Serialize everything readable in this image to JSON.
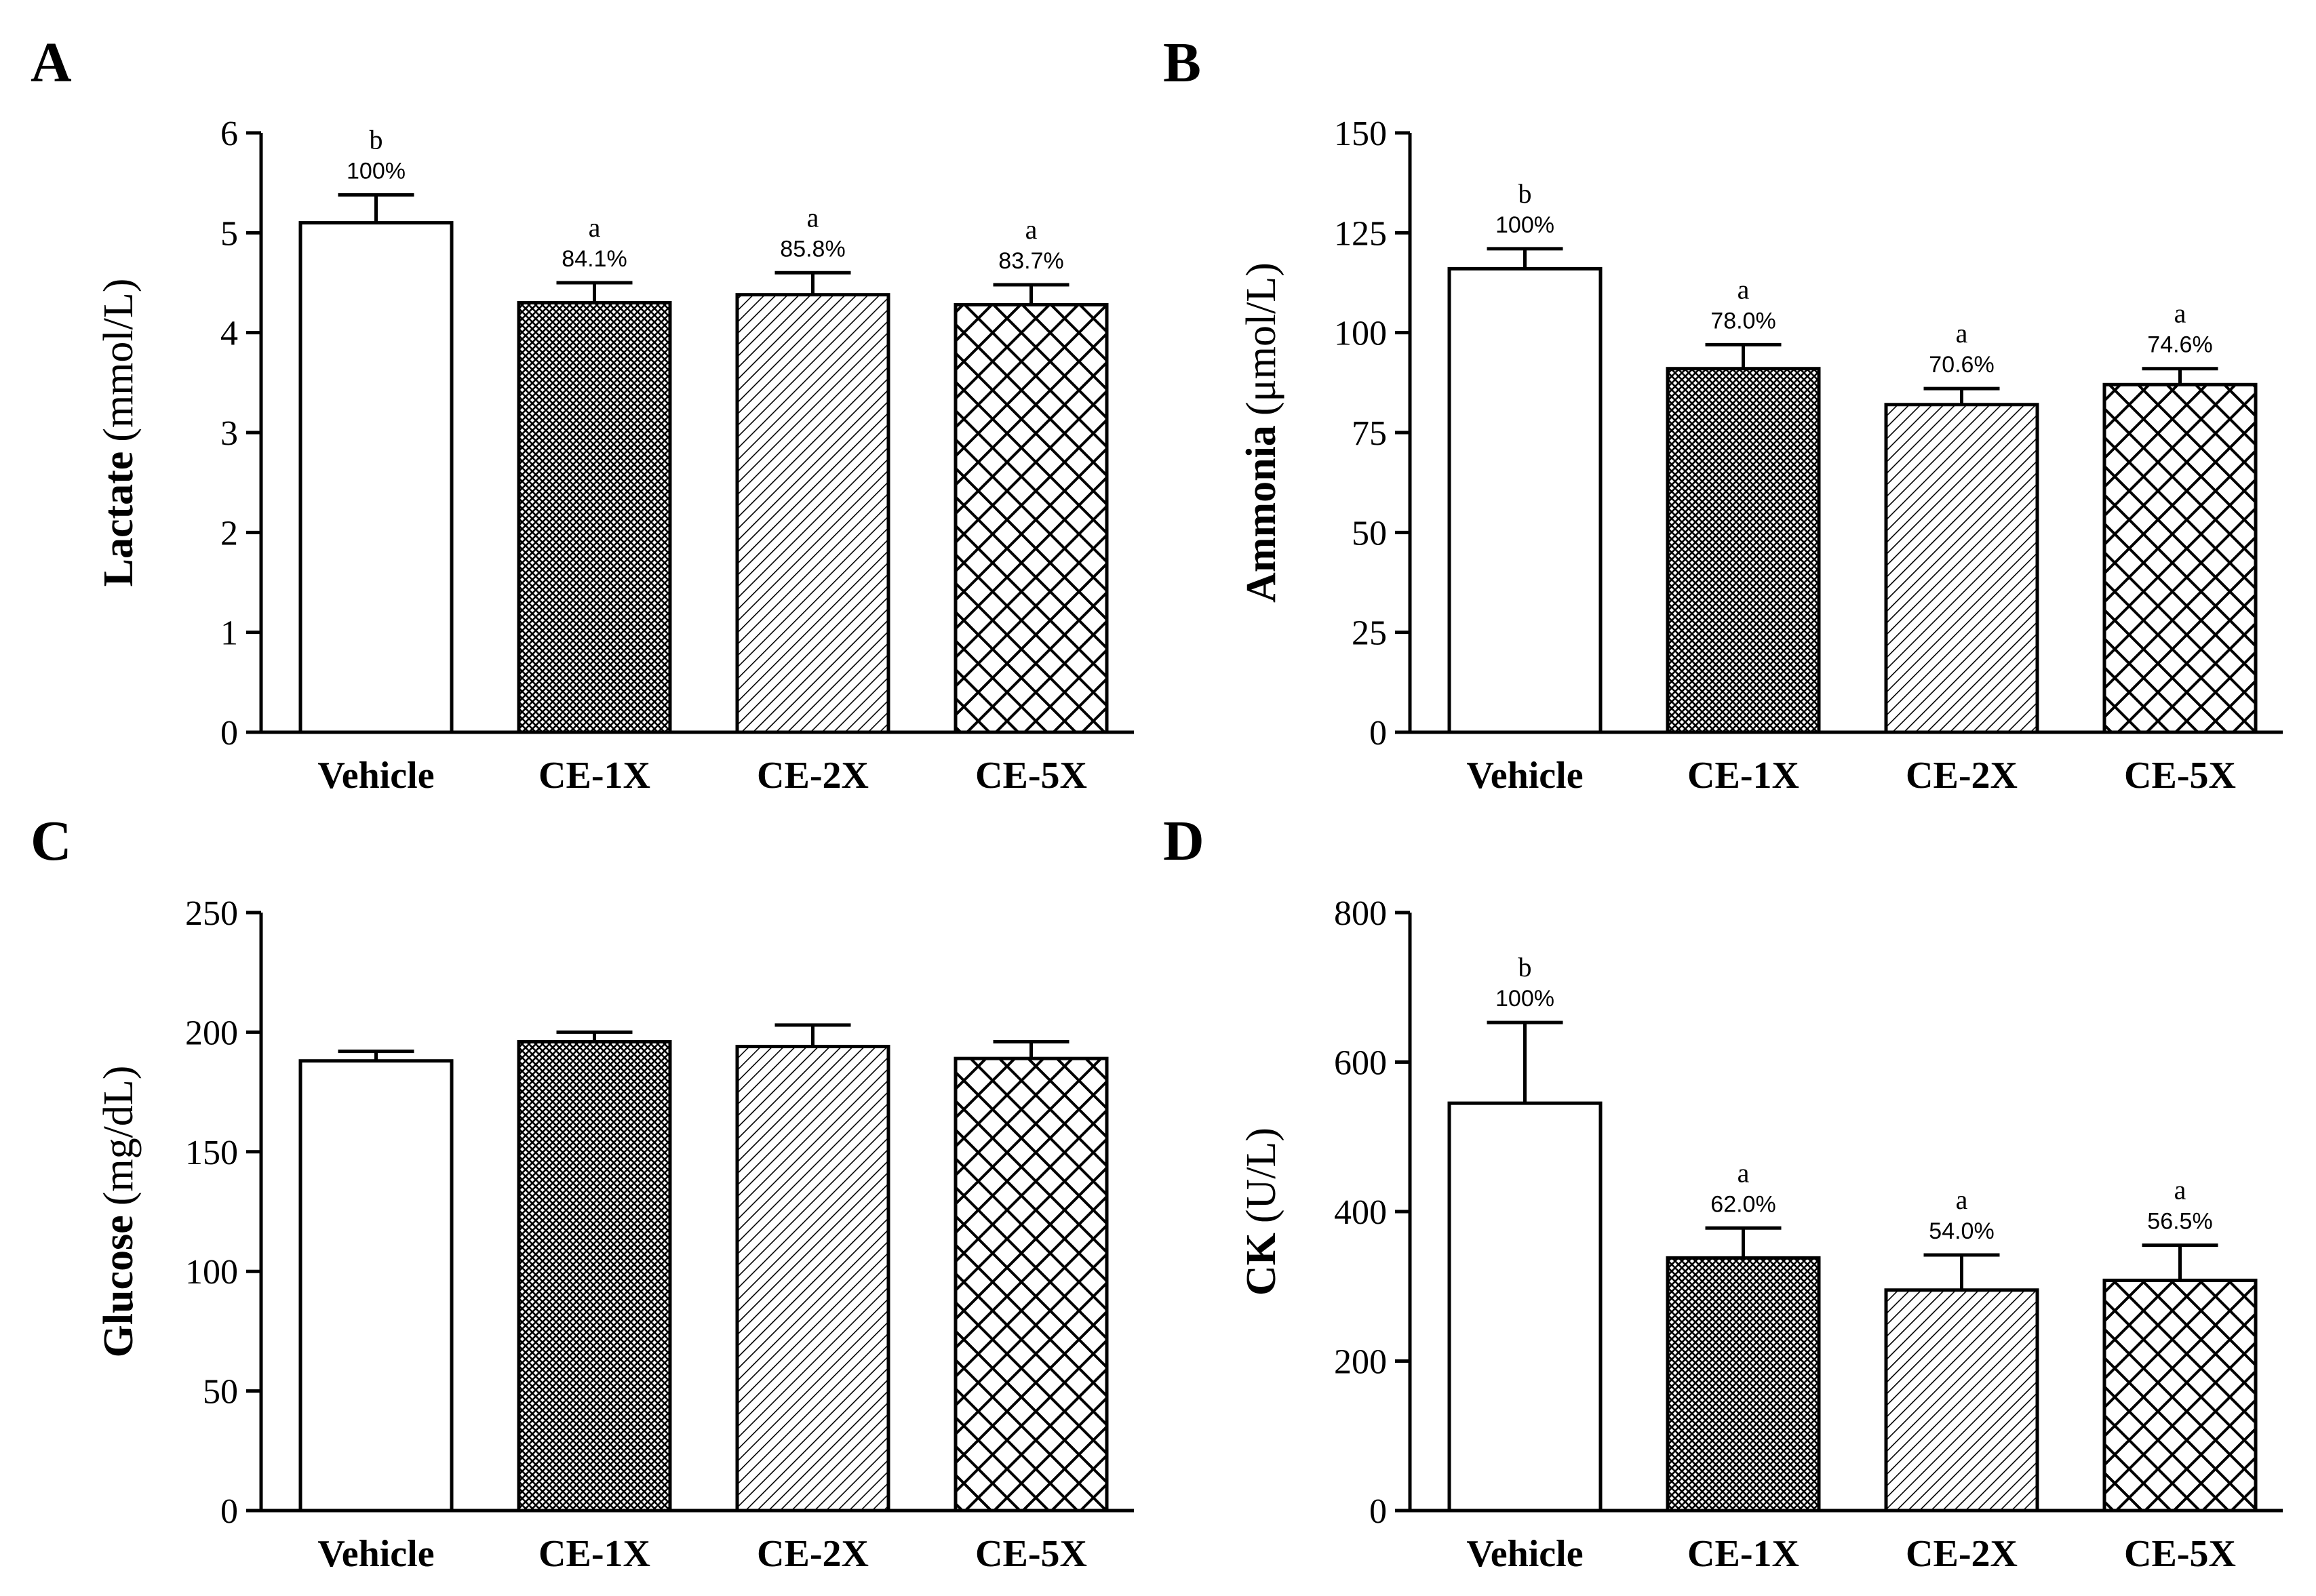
{
  "figure": {
    "title": ""
  },
  "colors": {
    "ink": "#000000",
    "paper": "#ffffff"
  },
  "chart_data": [
    {
      "panel": "A",
      "type": "bar",
      "title": "",
      "xlabel": "",
      "ylabel_bold": "Lactate",
      "ylabel_unit": "(mmol/L)",
      "ylim": [
        0,
        6
      ],
      "yticks": [
        0,
        1,
        2,
        3,
        4,
        5,
        6
      ],
      "categories": [
        "Vehicle",
        "CE-1X",
        "CE-2X",
        "CE-5X"
      ],
      "fill_patterns": [
        "none",
        "dots",
        "diagonal",
        "crosshatch"
      ],
      "values": [
        5.1,
        4.3,
        4.38,
        4.28
      ],
      "errors": [
        0.28,
        0.2,
        0.22,
        0.2
      ],
      "significance": [
        "b",
        "a",
        "a",
        "a"
      ],
      "percent_labels": [
        "100%",
        "84.1%",
        "85.8%",
        "83.7%"
      ]
    },
    {
      "panel": "B",
      "type": "bar",
      "title": "",
      "xlabel": "",
      "ylabel_bold": "Ammonia",
      "ylabel_unit": "(μmol/L)",
      "ylim": [
        0,
        150
      ],
      "yticks": [
        0,
        25,
        50,
        75,
        100,
        125,
        150
      ],
      "categories": [
        "Vehicle",
        "CE-1X",
        "CE-2X",
        "CE-5X"
      ],
      "fill_patterns": [
        "none",
        "dots",
        "diagonal",
        "crosshatch"
      ],
      "values": [
        116,
        91,
        82,
        87
      ],
      "errors": [
        5,
        6,
        4,
        4
      ],
      "significance": [
        "b",
        "a",
        "a",
        "a"
      ],
      "percent_labels": [
        "100%",
        "78.0%",
        "70.6%",
        "74.6%"
      ]
    },
    {
      "panel": "C",
      "type": "bar",
      "title": "",
      "xlabel": "",
      "ylabel_bold": "Glucose",
      "ylabel_unit": "(mg/dL)",
      "ylim": [
        0,
        250
      ],
      "yticks": [
        0,
        50,
        100,
        150,
        200,
        250
      ],
      "categories": [
        "Vehicle",
        "CE-1X",
        "CE-2X",
        "CE-5X"
      ],
      "fill_patterns": [
        "none",
        "dots",
        "diagonal",
        "crosshatch"
      ],
      "values": [
        188,
        196,
        194,
        189
      ],
      "errors": [
        4,
        4,
        9,
        7
      ],
      "significance": [
        "",
        "",
        "",
        ""
      ],
      "percent_labels": [
        "",
        "",
        "",
        ""
      ]
    },
    {
      "panel": "D",
      "type": "bar",
      "title": "",
      "xlabel": "",
      "ylabel_bold": "CK",
      "ylabel_unit": "(U/L)",
      "ylim": [
        0,
        800
      ],
      "yticks": [
        0,
        200,
        400,
        600,
        800
      ],
      "categories": [
        "Vehicle",
        "CE-1X",
        "CE-2X",
        "CE-5X"
      ],
      "fill_patterns": [
        "none",
        "dots",
        "diagonal",
        "crosshatch"
      ],
      "values": [
        545,
        338,
        295,
        308
      ],
      "errors": [
        108,
        40,
        47,
        47
      ],
      "significance": [
        "b",
        "a",
        "a",
        "a"
      ],
      "percent_labels": [
        "100%",
        "62.0%",
        "54.0%",
        "56.5%"
      ]
    }
  ]
}
